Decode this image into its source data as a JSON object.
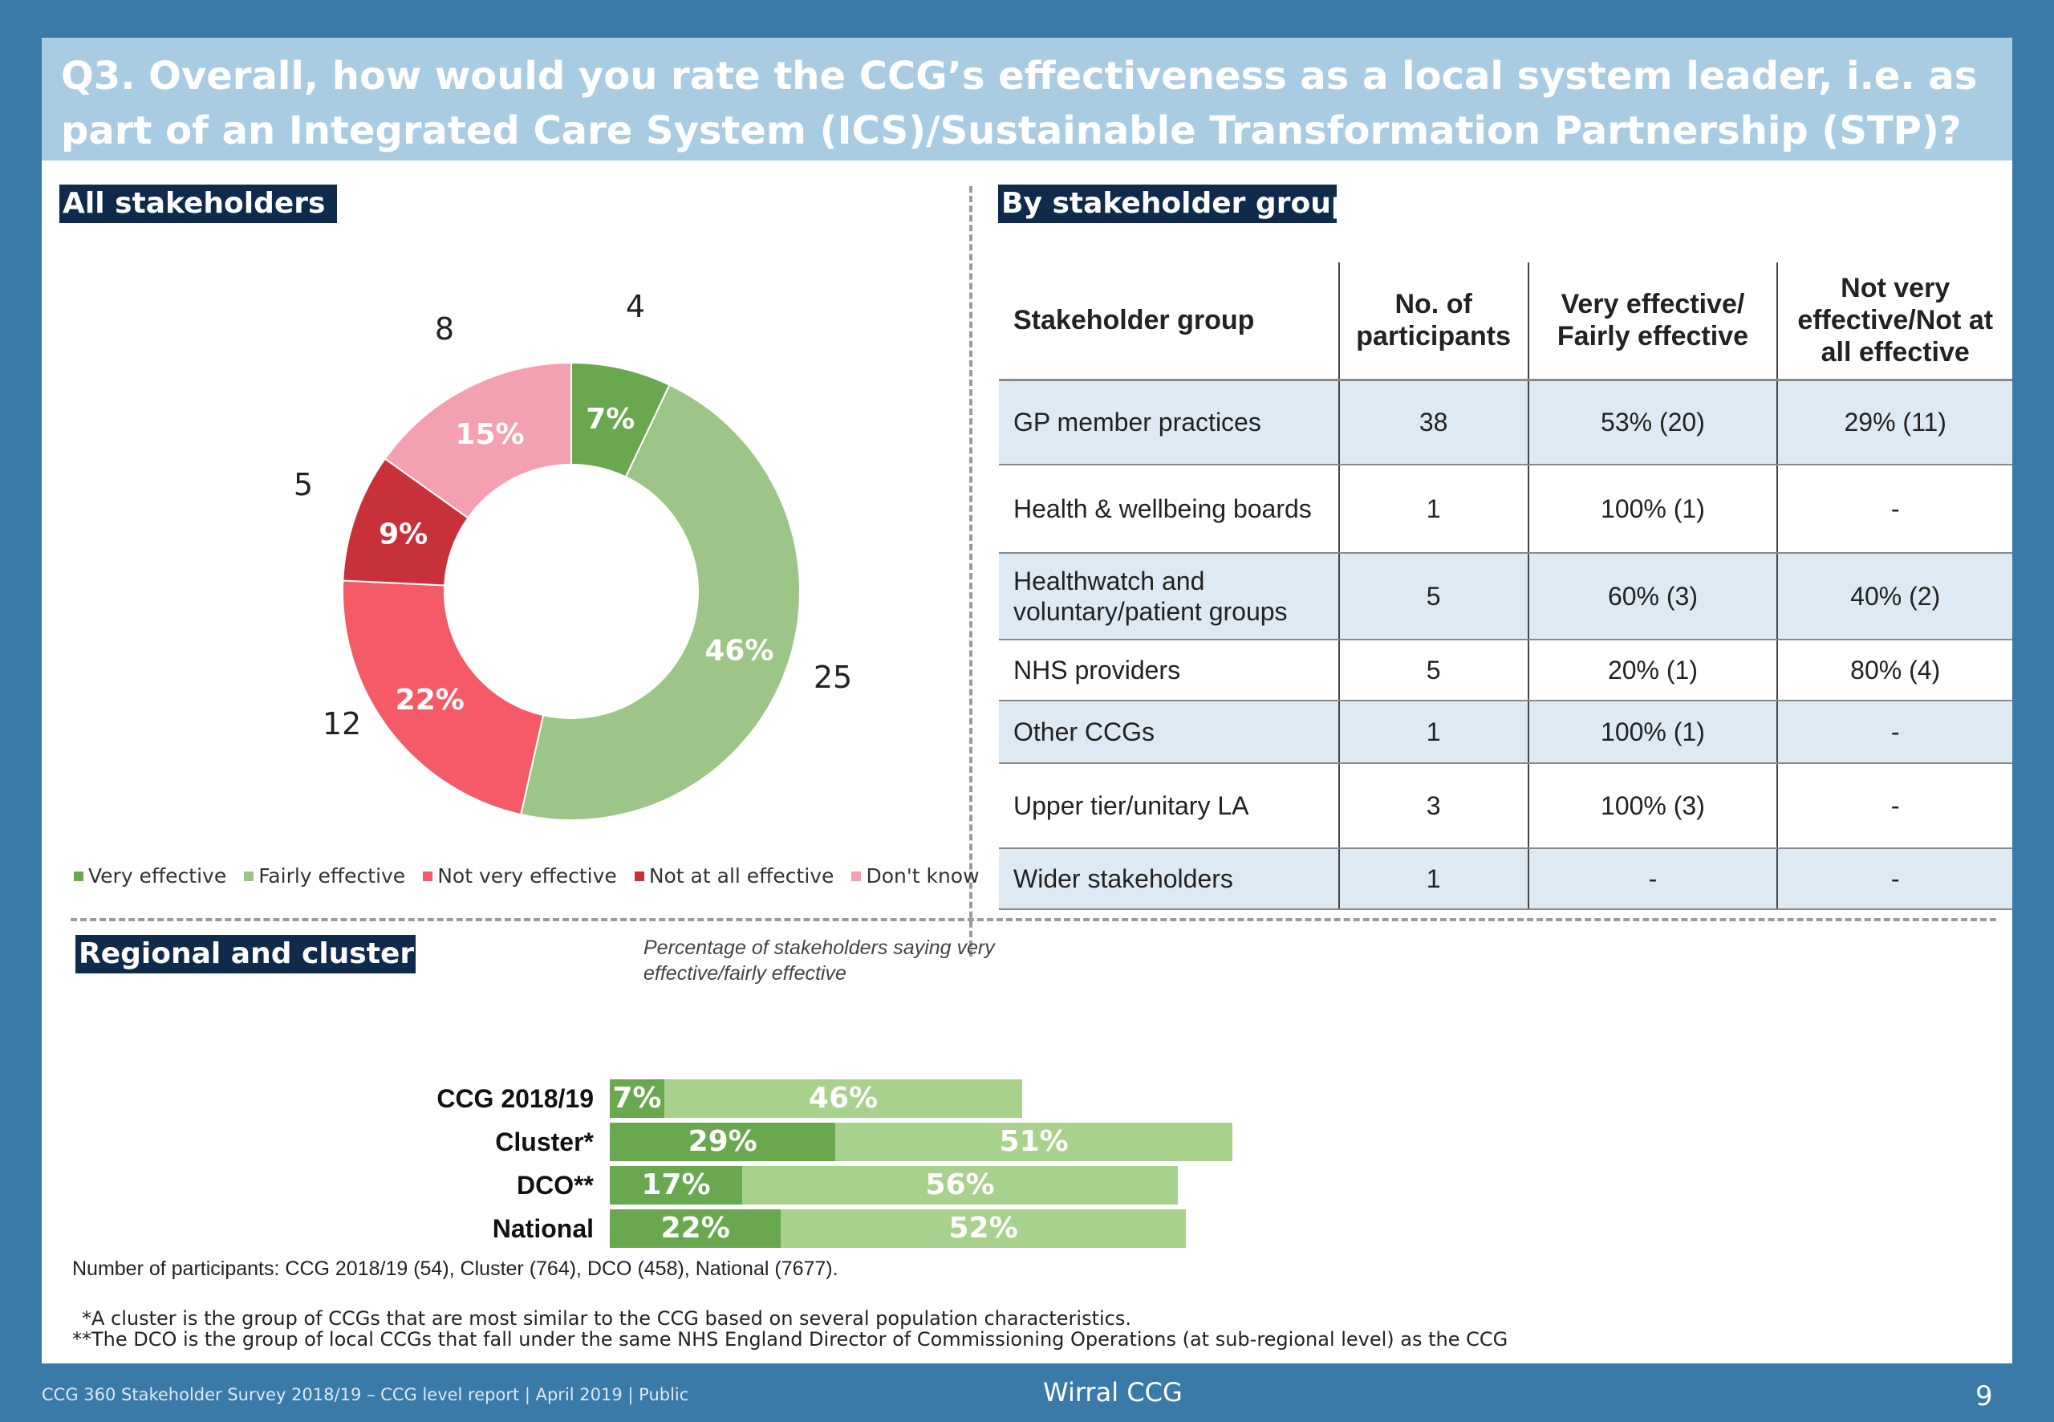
{
  "title": "Q3. Overall, how would you rate the CCG’s effectiveness as a local system leader, i.e. as part of an Integrated Care System (ICS)/Sustainable Transformation Partnership (STP)?",
  "sections": {
    "all": "All stakeholders",
    "by_group": "By stakeholder group",
    "regional": "Regional and cluster comparisons"
  },
  "regional_subtitle": "Percentage of stakeholders saying very effective/fairly effective",
  "colors": {
    "very_effective": "#6aa84f",
    "fairly_effective": "#9dc587",
    "not_very_effective": "#f45b66",
    "not_at_all_effective": "#c9313a",
    "dont_know": "#f4a0b0"
  },
  "chart_data": [
    {
      "type": "pie",
      "variant": "donut",
      "title": "All stakeholders",
      "slices": [
        {
          "label": "Very effective",
          "percent": 7,
          "count": 4,
          "pct_label": "7%",
          "count_label": "4",
          "color": "#6aa84f"
        },
        {
          "label": "Fairly effective",
          "percent": 46,
          "count": 25,
          "pct_label": "46%",
          "count_label": "25",
          "color": "#9dc587"
        },
        {
          "label": "Not very effective",
          "percent": 22,
          "count": 12,
          "pct_label": "22%",
          "count_label": "12",
          "color": "#f45b66"
        },
        {
          "label": "Not at all effective",
          "percent": 9,
          "count": 5,
          "pct_label": "9%",
          "count_label": "5",
          "color": "#c9313a"
        },
        {
          "label": "Don't know",
          "percent": 15,
          "count": 8,
          "pct_label": "15%",
          "count_label": "8",
          "color": "#f4a0b0"
        }
      ],
      "legend_position": "bottom"
    },
    {
      "type": "table",
      "title": "By stakeholder group",
      "columns": [
        "Stakeholder group",
        "No. of participants",
        "Very effective/ Fairly effective",
        "Not very effective/Not at all effective"
      ],
      "rows": [
        [
          "GP member practices",
          "38",
          "53% (20)",
          "29% (11)"
        ],
        [
          "Health & wellbeing boards",
          "1",
          "100% (1)",
          "-"
        ],
        [
          "Healthwatch and voluntary/patient groups",
          "5",
          "60% (3)",
          "40% (2)"
        ],
        [
          "NHS providers",
          "5",
          "20% (1)",
          "80% (4)"
        ],
        [
          "Other CCGs",
          "1",
          "100% (1)",
          "-"
        ],
        [
          "Upper tier/unitary LA",
          "3",
          "100% (3)",
          "-"
        ],
        [
          "Wider stakeholders",
          "1",
          "-",
          "-"
        ]
      ]
    },
    {
      "type": "bar",
      "orientation": "horizontal",
      "stacked": true,
      "title": "Regional and cluster comparisons",
      "categories": [
        "CCG 2018/19",
        "Cluster*",
        "DCO**",
        "National"
      ],
      "series": [
        {
          "name": "Very effective",
          "values": [
            7,
            29,
            17,
            22
          ],
          "labels": [
            "7%",
            "29%",
            "17%",
            "22%"
          ],
          "color": "#6aa84f"
        },
        {
          "name": "Fairly effective",
          "values": [
            46,
            51,
            56,
            52
          ],
          "labels": [
            "46%",
            "51%",
            "56%",
            "52%"
          ],
          "color": "#a9d18e"
        }
      ],
      "xlim": [
        0,
        100
      ]
    }
  ],
  "notes": {
    "participants": "Number of participants: CCG 2018/19 (54), Cluster (764), DCO (458), National (7677).",
    "cluster": "*A cluster is the group of CCGs that are most similar to the CCG based on several population characteristics.",
    "dco": "**The DCO is the group of local CCGs that fall under the same NHS England Director of Commissioning Operations (at sub-regional level) as the CCG"
  },
  "footer": {
    "left": "CCG 360 Stakeholder Survey 2018/19 – CCG level report | April 2019 | Public",
    "center": "Wirral CCG",
    "page": "9"
  }
}
